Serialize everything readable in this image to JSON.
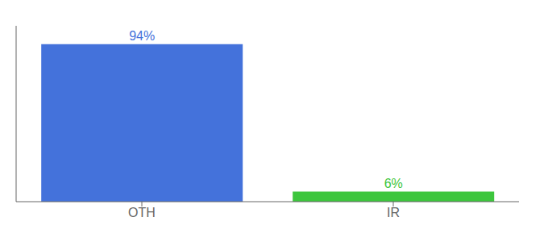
{
  "chart_data": {
    "type": "bar",
    "categories": [
      "OTH",
      "IR"
    ],
    "values": [
      94,
      6
    ],
    "value_labels": [
      "94%",
      "6%"
    ],
    "colors": [
      "#4472DB",
      "#3DC63D"
    ],
    "ylim": [
      0,
      105
    ],
    "tick_labels": "x",
    "data_labels": true,
    "grid": false
  }
}
